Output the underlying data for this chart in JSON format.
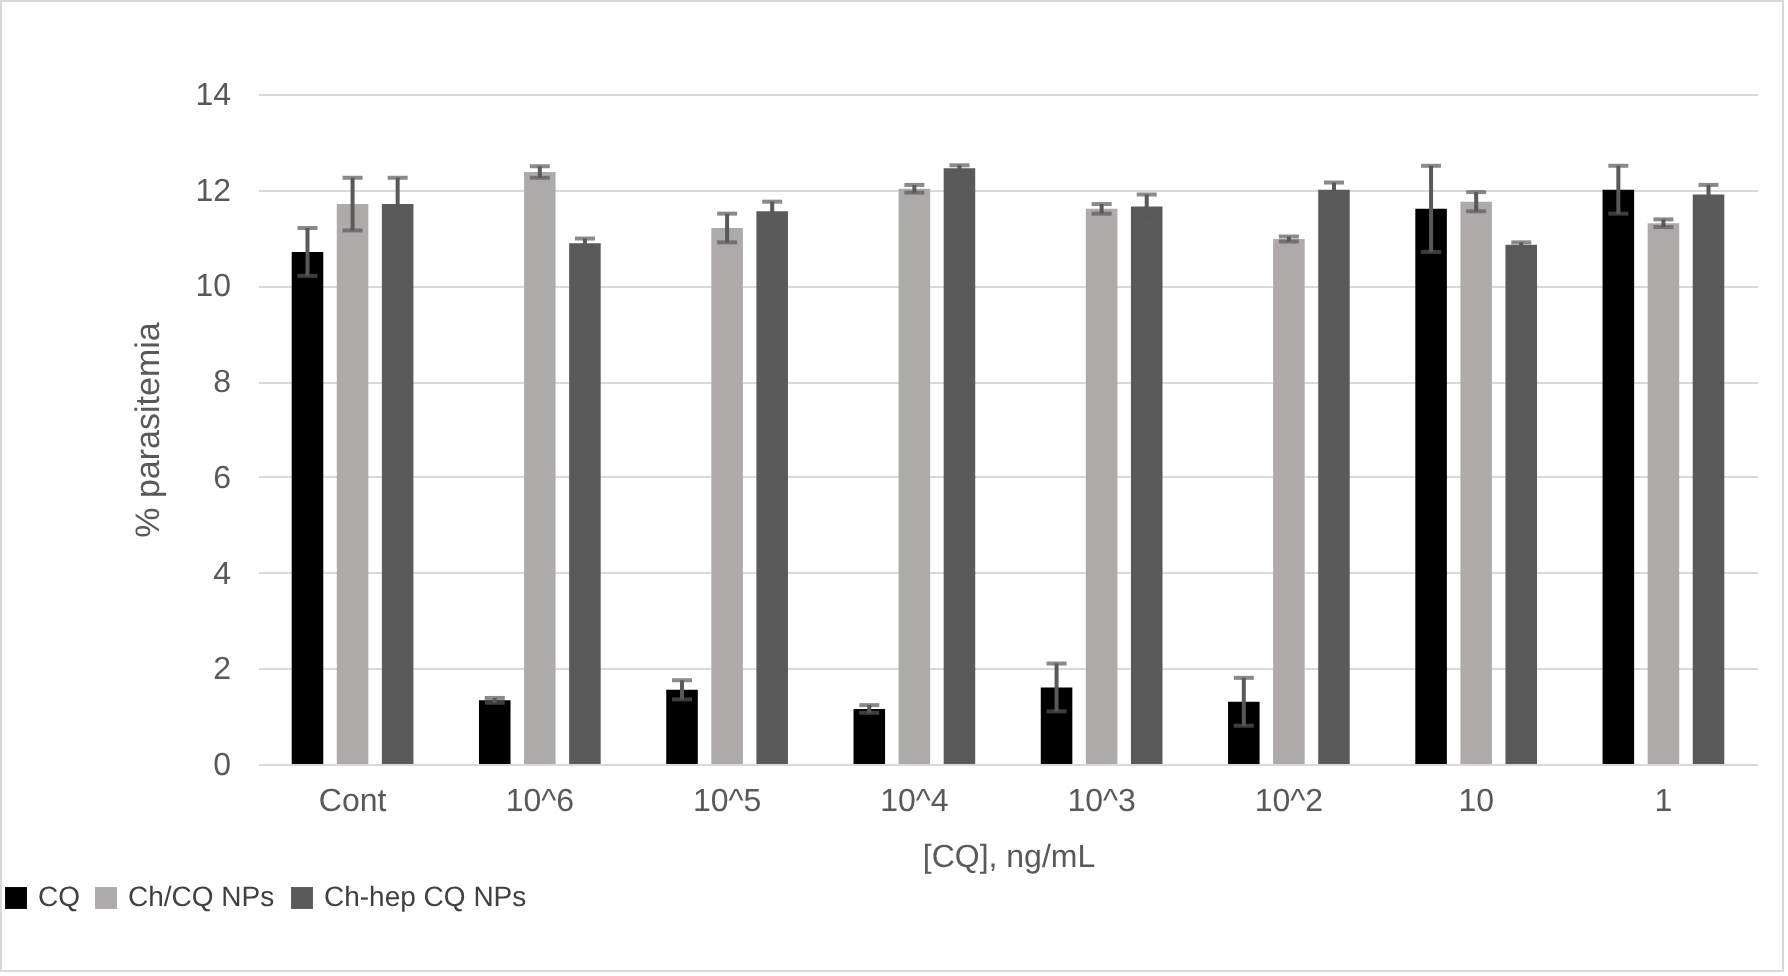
{
  "chart_data": {
    "type": "bar",
    "ylabel": "% parasitemia",
    "xlabel": "[CQ], ng/mL",
    "categories": [
      "Cont",
      "10^6",
      "10^5",
      "10^4",
      "10^3",
      "10^2",
      "10",
      "1"
    ],
    "ylim": [
      0,
      14
    ],
    "yticks": [
      0,
      2,
      4,
      6,
      8,
      10,
      12,
      14
    ],
    "grid": "y",
    "legend": "bottom left",
    "series": [
      {
        "name": "CQ",
        "color": "#000000",
        "values": [
          10.7,
          1.33,
          1.55,
          1.15,
          1.6,
          1.3,
          11.6,
          12.0
        ],
        "errors": [
          0.5,
          0.05,
          0.2,
          0.08,
          0.5,
          0.5,
          0.9,
          0.5
        ]
      },
      {
        "name": "Ch/CQ NPs",
        "color": "#aeaaaa",
        "values": [
          11.7,
          12.37,
          11.2,
          12.02,
          11.6,
          10.97,
          11.75,
          11.3
        ],
        "errors": [
          0.55,
          0.12,
          0.3,
          0.08,
          0.1,
          0.05,
          0.2,
          0.08
        ]
      },
      {
        "name": "Ch-hep CQ NPs",
        "color": "#5a5a5a",
        "values": [
          11.7,
          10.88,
          11.55,
          12.45,
          11.65,
          12.0,
          10.85,
          11.9
        ],
        "errors": [
          0.55,
          0.1,
          0.2,
          0.06,
          0.25,
          0.15,
          0.05,
          0.2
        ]
      }
    ]
  }
}
